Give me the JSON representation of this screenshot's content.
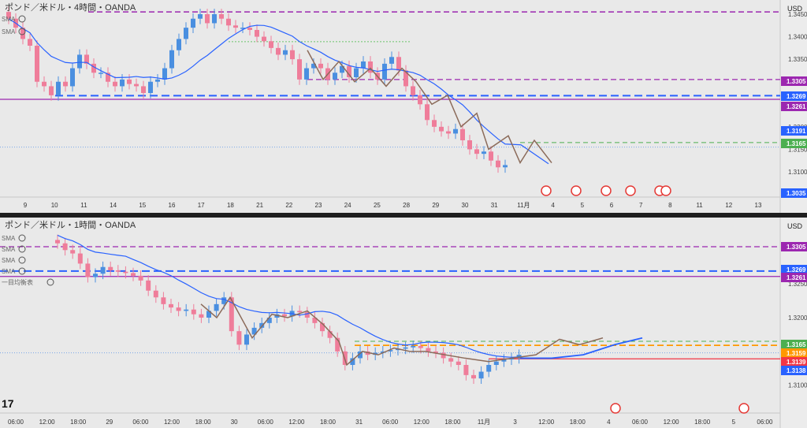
{
  "top_panel": {
    "title": "ポンド／米ドル・4時間・OANDA",
    "currency": "USD",
    "indicator_labels": [
      "SMA",
      "SMA"
    ],
    "price_ticks": [
      "1.3450",
      "1.3400",
      "1.3350",
      "1.3300",
      "1.3250",
      "1.3200",
      "1.3150",
      "1.3100"
    ],
    "price_tags": [
      {
        "text": "1.3305",
        "color": "#9c27b0"
      },
      {
        "text": "1.3269",
        "color": "#2962ff"
      },
      {
        "text": "1.3261",
        "color": "#9c27b0"
      },
      {
        "text": "1.3191",
        "color": "#2962ff"
      },
      {
        "text": "1.3165",
        "color": "#4caf50"
      },
      {
        "text": "1.3035",
        "color": "#2962ff"
      }
    ],
    "date_labels": [
      "9",
      "10",
      "11",
      "14",
      "15",
      "16",
      "17",
      "18",
      "21",
      "22",
      "23",
      "24",
      "25",
      "28",
      "29",
      "30",
      "31",
      "11月",
      "4",
      "5",
      "6",
      "7",
      "8",
      "11",
      "12",
      "13"
    ]
  },
  "bottom_panel": {
    "title": "ポンド／米ドル・1時間・OANDA",
    "currency": "USD",
    "indicator_labels": [
      "SMA",
      "SMA",
      "SMA",
      "SMA",
      "一目均衡表"
    ],
    "price_ticks": [
      "1.3250",
      "1.3200",
      "1.3150",
      "1.3100"
    ],
    "price_tags": [
      {
        "text": "1.3305",
        "color": "#9c27b0"
      },
      {
        "text": "1.3269",
        "color": "#2962ff"
      },
      {
        "text": "1.3261",
        "color": "#9c27b0"
      },
      {
        "text": "1.3165",
        "color": "#4caf50"
      },
      {
        "text": "1.3159",
        "color": "#ff9800"
      },
      {
        "text": "1.3139",
        "color": "#f23645"
      },
      {
        "text": "1.3138",
        "color": "#2962ff"
      }
    ],
    "time_labels": [
      "06:00",
      "12:00",
      "18:00",
      "29",
      "06:00",
      "12:00",
      "18:00",
      "30",
      "06:00",
      "12:00",
      "18:00",
      "31",
      "06:00",
      "12:00",
      "18:00",
      "11月",
      "3",
      "12:00",
      "18:00",
      "4",
      "06:00",
      "12:00",
      "18:00",
      "5",
      "06:00"
    ]
  },
  "colors": {
    "up": "#4a8fe0",
    "down": "#ef7d9a",
    "ma": "#2962ff",
    "purple": "#9c27b0",
    "blue": "#2962ff",
    "green": "#4caf50",
    "orange": "#ff9800",
    "red": "#f23645",
    "forecast": "#8b6b5a"
  },
  "chart_data": [
    {
      "type": "candlestick",
      "title": "ポンド／米ドル・4時間・OANDA",
      "ylim": [
        1.3035,
        1.347
      ],
      "ohlc_close": [
        1.344,
        1.342,
        1.3395,
        1.338,
        1.33,
        1.329,
        1.327,
        1.33,
        1.329,
        1.333,
        1.336,
        1.334,
        1.332,
        1.332,
        1.33,
        1.329,
        1.3305,
        1.3295,
        1.329,
        1.3275,
        1.33,
        1.3305,
        1.333,
        1.337,
        1.3395,
        1.342,
        1.344,
        1.345,
        1.343,
        1.345,
        1.344,
        1.3425,
        1.342,
        1.342,
        1.3415,
        1.34,
        1.339,
        1.3375,
        1.336,
        1.337,
        1.335,
        1.3305,
        1.333,
        1.334,
        1.333,
        1.3305,
        1.332,
        1.3335,
        1.331,
        1.333,
        1.3345,
        1.332,
        1.3305,
        1.334,
        1.3355,
        1.3325,
        1.329,
        1.327,
        1.325,
        1.3215,
        1.32,
        1.319,
        1.3185,
        1.3195,
        1.317,
        1.315,
        1.314,
        1.3145,
        1.3125,
        1.311,
        1.3115
      ],
      "moving_average_end": 1.3115,
      "levels": [
        1.3305,
        1.3269,
        1.3261,
        1.3165
      ]
    },
    {
      "type": "candlestick",
      "title": "ポンド／米ドル・1時間・OANDA",
      "ylim": [
        1.308,
        1.332
      ],
      "levels": [
        1.3305,
        1.3269,
        1.3261,
        1.3165,
        1.3159,
        1.3139,
        1.3138
      ]
    }
  ]
}
